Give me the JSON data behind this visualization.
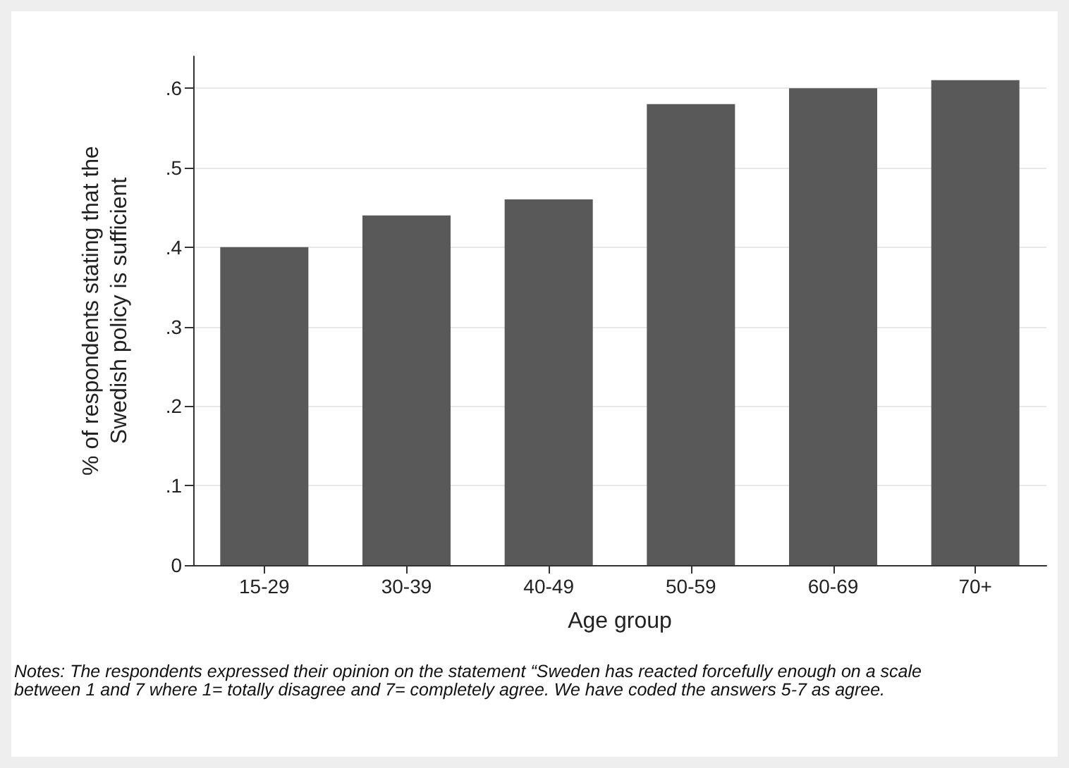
{
  "chart_data": {
    "type": "bar",
    "xlabel": "Age group",
    "ylabel": "% of respondents stating that the\nSwedish policy is sufficient",
    "categories": [
      "15-29",
      "30-39",
      "40-49",
      "50-59",
      "60-69",
      "70+"
    ],
    "values": [
      0.4,
      0.44,
      0.46,
      0.58,
      0.6,
      0.61
    ],
    "color": "#595959",
    "ylim": [
      0,
      0.64
    ],
    "yticks": [
      0,
      {
        "value": 0.1,
        "label": ".1"
      },
      {
        "value": 0.2,
        "label": ".2"
      },
      {
        "value": 0.3,
        "label": ".3"
      },
      {
        "value": 0.4,
        "label": ".4"
      },
      {
        "value": 0.5,
        "label": ".5"
      },
      {
        "value": 0.6,
        "label": ".6"
      }
    ],
    "grid": "y",
    "annotations": [
      "Notes: The respondents expressed their opinion on the statement “Sweden has reacted forcefully enough on a scale between 1 and 7 where 1= totally disagree and 7= completely agree. We have coded the answers 5-7 as agree."
    ]
  }
}
